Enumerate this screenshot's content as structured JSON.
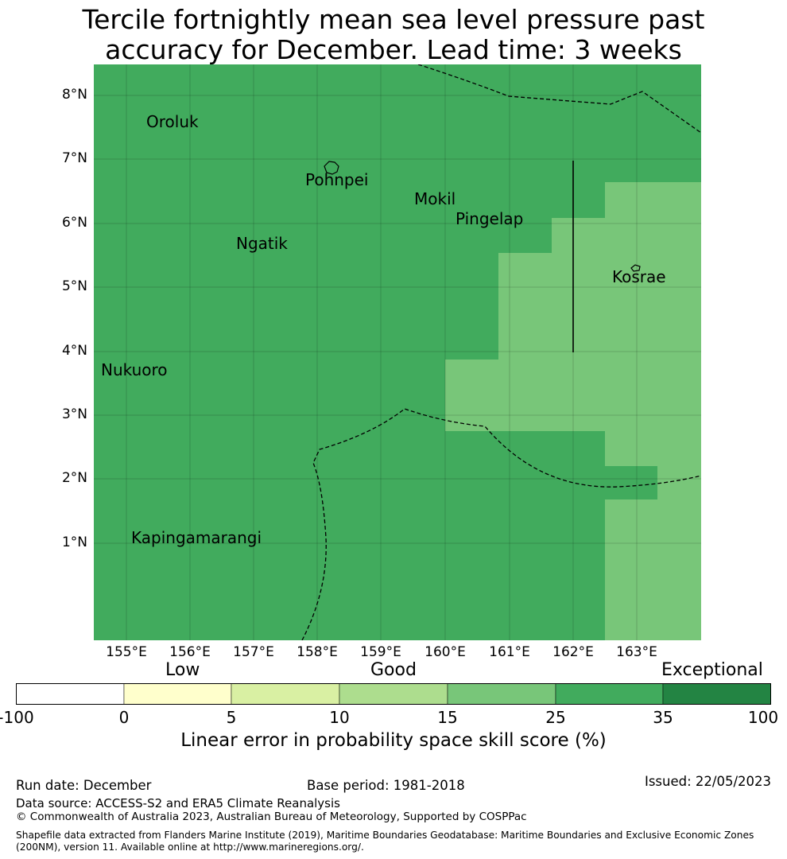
{
  "title_line1": "Tercile fortnightly mean sea level pressure past",
  "title_line2": "accuracy for December. Lead time: 3 weeks",
  "map": {
    "lat_labels": [
      "8°N",
      "7°N",
      "6°N",
      "5°N",
      "4°N",
      "3°N",
      "2°N",
      "1°N"
    ],
    "lon_labels": [
      "155°E",
      "156°E",
      "157°E",
      "158°E",
      "159°E",
      "160°E",
      "161°E",
      "162°E",
      "163°E"
    ],
    "places": {
      "oroluk": "Oroluk",
      "pohnpei": "Pohnpei",
      "mokil": "Mokil",
      "pingelap": "Pingelap",
      "ngatik": "Ngatik",
      "kosrae": "Kosrae",
      "nukuoro": "Nukuoro",
      "kapingamarangi": "Kapingamarangi"
    },
    "colors": {
      "band_25_35": "#41ab5d",
      "band_15_25": "#78c679"
    }
  },
  "legend": {
    "categories": {
      "low": "Low",
      "good": "Good",
      "exceptional": "Exceptional"
    },
    "ticks": [
      "-100",
      "0",
      "5",
      "10",
      "15",
      "25",
      "35",
      "100"
    ],
    "colors": [
      "#ffffff",
      "#ffffcc",
      "#d9f0a3",
      "#addd8e",
      "#78c679",
      "#41ab5d",
      "#238443"
    ],
    "title": "Linear error in probability space skill score (%)"
  },
  "footer": {
    "run_date": "Run date: December",
    "base_period": "Base period: 1981-2018",
    "issued": "Issued: 22/05/2023",
    "data_source": "Data source: ACCESS-S2 and ERA5 Climate Reanalysis",
    "copyright": "© Commonwealth of Australia 2023, Australian Bureau of Meteorology, Supported by COSPPac",
    "shapefile1": "Shapefile data extracted from Flanders Marine Institute (2019), Maritime Boundaries Geodatabase: Maritime Boundaries and Exclusive Economic Zones",
    "shapefile2": "(200NM), version 11. Available online at http://www.marineregions.org/."
  }
}
